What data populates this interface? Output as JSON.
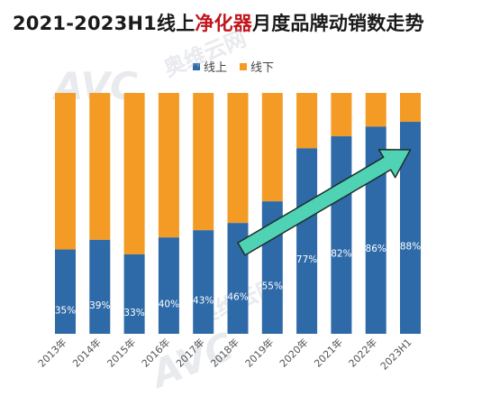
{
  "title": {
    "prefix": "2021-2023H1线上",
    "highlight": "净化器",
    "suffix": "月度品牌动销数走势"
  },
  "watermark": {
    "logo": "AVC",
    "cn": "奥维云网",
    "en": "ALL VIEW CLOUD"
  },
  "colors": {
    "online": "#2e6aa8",
    "offline": "#f39b24",
    "arrow": "#4fd3b4",
    "arrow_stroke": "#1f2d2b"
  },
  "chart_data": {
    "type": "bar",
    "stacked": true,
    "normalized_100": true,
    "categories": [
      "2013年",
      "2014年",
      "2015年",
      "2016年",
      "2017年",
      "2018年",
      "2019年",
      "2020年",
      "2021年",
      "2022年",
      "2023H1"
    ],
    "series": [
      {
        "name": "线上",
        "values": [
          35,
          39,
          33,
          40,
          43,
          46,
          55,
          77,
          82,
          86,
          88
        ]
      },
      {
        "name": "线下",
        "values": [
          65,
          61,
          67,
          60,
          57,
          54,
          45,
          23,
          18,
          14,
          12
        ]
      }
    ],
    "data_labels": [
      "35%",
      "39%",
      "33%",
      "40%",
      "43%",
      "46%",
      "55%",
      "77%",
      "82%",
      "86%",
      "88%"
    ],
    "ylim": [
      0,
      100
    ],
    "legend_position": "top-center",
    "annotation": "upward trend arrow from 2018 to 2023H1"
  }
}
